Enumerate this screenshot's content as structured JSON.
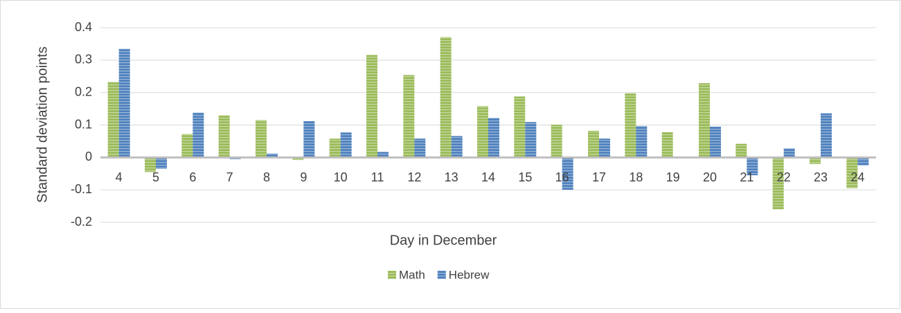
{
  "chart_data": {
    "type": "bar",
    "y_axis_label": "Standard deviation points",
    "x_axis_label": "Day in December",
    "categories": [
      "4",
      "5",
      "6",
      "7",
      "8",
      "9",
      "10",
      "11",
      "12",
      "13",
      "14",
      "15",
      "16",
      "17",
      "18",
      "19",
      "20",
      "21",
      "22",
      "23",
      "24"
    ],
    "series": [
      {
        "name": "Math",
        "color": "#9bbb59",
        "values": [
          0.233,
          -0.045,
          0.072,
          0.13,
          0.115,
          -0.008,
          0.058,
          0.316,
          0.254,
          0.371,
          0.158,
          0.188,
          0.101,
          0.082,
          0.198,
          0.078,
          0.229,
          0.042,
          -0.16,
          -0.02,
          -0.095
        ]
      },
      {
        "name": "Hebrew",
        "color": "#4f81bd",
        "values": [
          0.335,
          -0.035,
          0.138,
          -0.005,
          0.012,
          0.112,
          0.077,
          0.017,
          0.058,
          0.066,
          0.122,
          0.109,
          -0.1,
          0.058,
          0.097,
          0,
          0.095,
          -0.055,
          0.028,
          0.136,
          -0.025
        ]
      }
    ],
    "ylim": [
      -0.2,
      0.4
    ],
    "yticks": [
      -0.2,
      -0.1,
      0,
      0.1,
      0.2,
      0.3,
      0.4
    ],
    "grid": true,
    "legend": "bottom"
  }
}
